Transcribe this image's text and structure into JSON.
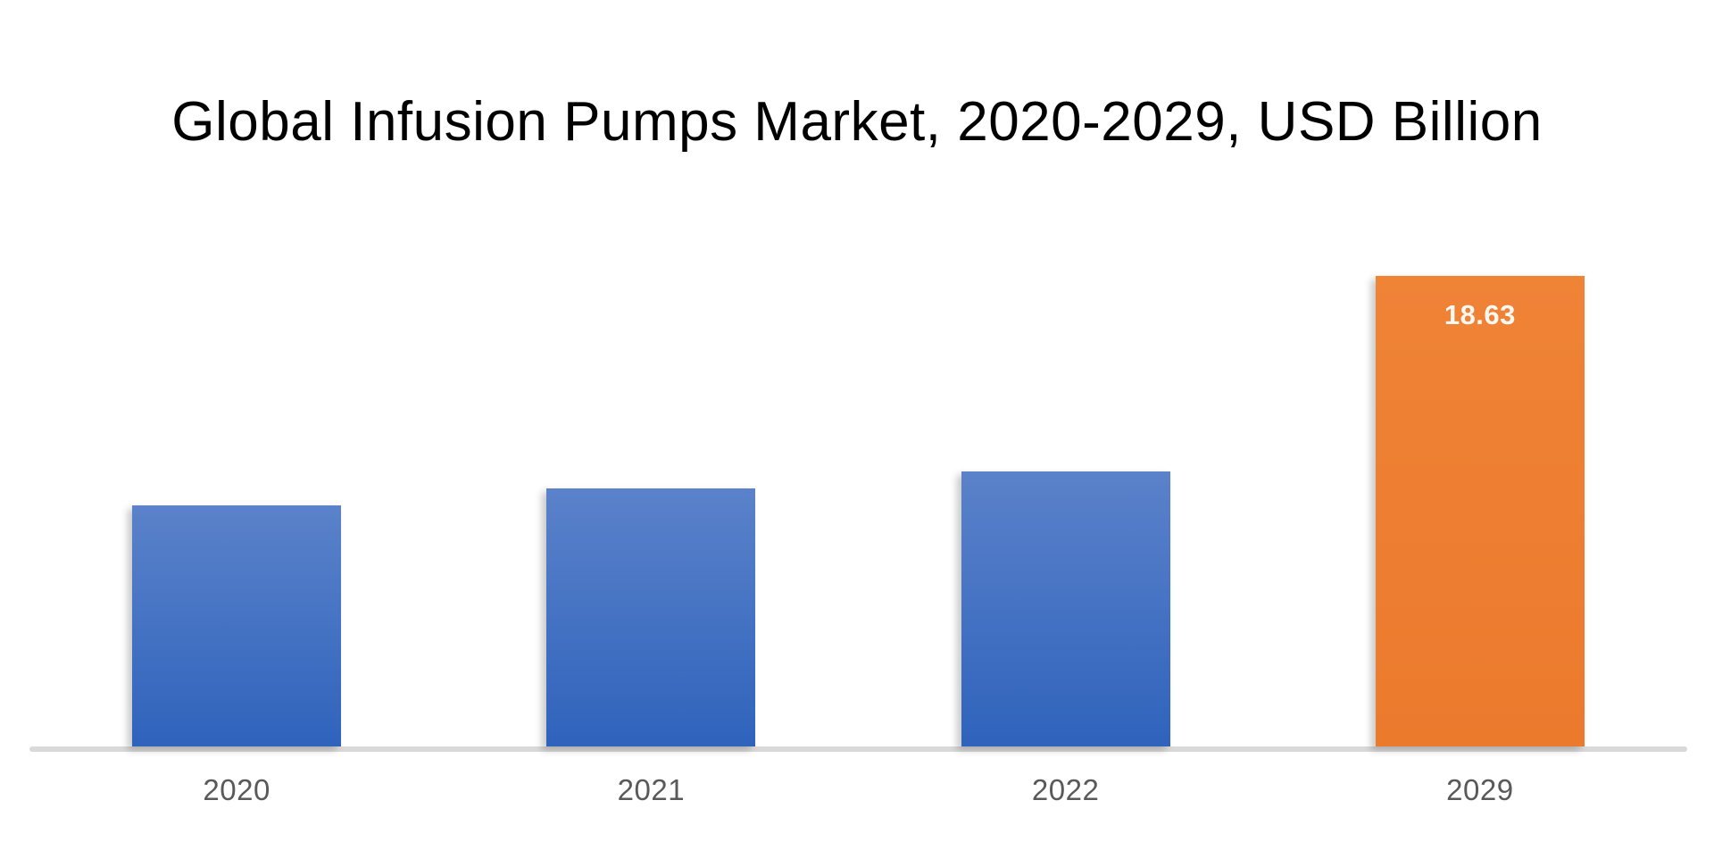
{
  "chart_data": {
    "type": "bar",
    "title": "Global Infusion Pumps Market, 2020-2029, USD Billion",
    "categories": [
      "2020",
      "2021",
      "2022",
      "2029"
    ],
    "values": [
      9.54,
      10.21,
      10.88,
      18.63
    ],
    "data_labels": [
      "",
      "",
      "",
      "18.63"
    ],
    "xlabel": "",
    "ylabel": "",
    "ylim": [
      0,
      20
    ],
    "grid": false,
    "legend": false,
    "y_axis_visible": false,
    "bar_styles": [
      "blue",
      "blue",
      "blue",
      "orange"
    ],
    "colors": {
      "bar_blue_top": "#5b82ca",
      "bar_blue_bottom": "#2f63bc",
      "bar_orange_top": "#ef8336",
      "bar_orange_bottom": "#ec7a2d",
      "axis_line": "#d9d9d9",
      "tick_label": "#595959",
      "value_label": "#faf8f2",
      "title": "#000000",
      "background": "#ffffff"
    }
  }
}
